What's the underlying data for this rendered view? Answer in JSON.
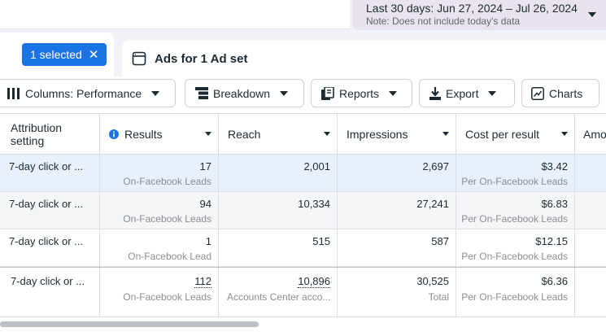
{
  "date_picker": {
    "range": "Last 30 days: Jun 27, 2024 – Jul 26, 2024",
    "note": "Note: Does not include today's data"
  },
  "selection": {
    "chip_label": "1 selected",
    "close_glyph": "✕"
  },
  "adset_tab": {
    "label": "Ads for 1 Ad set"
  },
  "toolbar": {
    "columns_label": "Columns: Performance",
    "breakdown_label": "Breakdown",
    "reports_label": "Reports",
    "export_label": "Export",
    "charts_label": "Charts"
  },
  "table": {
    "headers": {
      "attribution": "Attribution\nsetting",
      "results": "Results",
      "reach": "Reach",
      "impressions": "Impressions",
      "cost_per_result": "Cost per result",
      "amount": "Amo"
    },
    "rows": [
      {
        "attribution": "7-day click or ...",
        "results": "17",
        "results_sub": "On-Facebook Leads",
        "reach": "2,001",
        "impressions": "2,697",
        "cost": "$3.42",
        "cost_sub": "Per On-Facebook Leads"
      },
      {
        "attribution": "7-day click or ...",
        "results": "94",
        "results_sub": "On-Facebook Leads",
        "reach": "10,334",
        "impressions": "27,241",
        "cost": "$6.83",
        "cost_sub": "Per On-Facebook Leads"
      },
      {
        "attribution": "7-day click or ...",
        "results": "1",
        "results_sub": "On-Facebook Lead",
        "reach": "515",
        "impressions": "587",
        "cost": "$12.15",
        "cost_sub": "Per On-Facebook Leads"
      }
    ],
    "total": {
      "attribution": "7-day click or ...",
      "results": "112",
      "results_sub": "On-Facebook Leads",
      "reach": "10,896",
      "reach_sub": "Accounts Center acco...",
      "impressions": "30,525",
      "impressions_sub": "Total",
      "cost": "$6.36",
      "cost_sub": "Per On-Facebook Leads"
    }
  },
  "colors": {
    "accent": "#1b74e4",
    "selected_row": "#e7f0fc",
    "alt_row": "#f5f6f7",
    "date_bg": "#e9e3ef"
  },
  "icons": [
    "close-icon",
    "adset-icon",
    "columns-icon",
    "breakdown-icon",
    "reports-icon",
    "export-icon",
    "charts-icon",
    "info-icon",
    "chevron-down-icon"
  ]
}
